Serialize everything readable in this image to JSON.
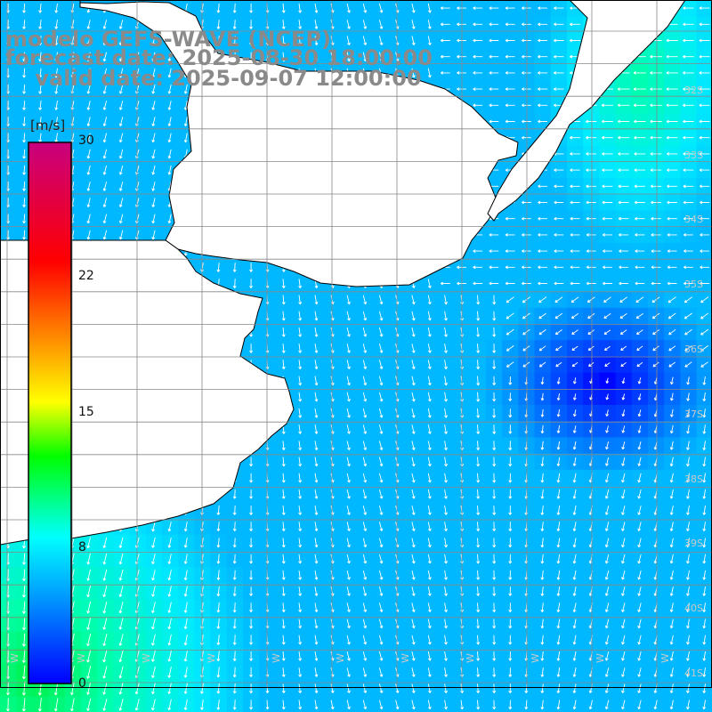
{
  "title": {
    "line1": "modelo GEFS-WAVE (NCEP)",
    "line2": "forecast date: 2025-08-30 18:00:00",
    "line3": "    valid date: 2025-09-07 12:00:00"
  },
  "colorbar": {
    "unit": "[m/s]",
    "ticks": [
      "30",
      "22",
      "15",
      "8",
      "0"
    ],
    "tick_values": [
      30,
      22,
      15,
      8,
      0
    ],
    "range": [
      0,
      30
    ],
    "stops": [
      "#0000ff",
      "#00a0ff",
      "#00ffff",
      "#00ff00",
      "#ffff00",
      "#ff8000",
      "#ff0000",
      "#c80080"
    ]
  },
  "lat_labels": [
    "32S",
    "33S",
    "34S",
    "35S",
    "36S",
    "37S",
    "38S",
    "39S",
    "40S",
    "41S"
  ],
  "lon_labels": [
    "W",
    "W",
    "W",
    "W",
    "W",
    "W",
    "W",
    "W",
    "W",
    "W",
    "W"
  ],
  "colors": {
    "land": "#ffffff",
    "coast": "#000000",
    "grid": "#808080",
    "arrow": "#ffffff"
  }
}
